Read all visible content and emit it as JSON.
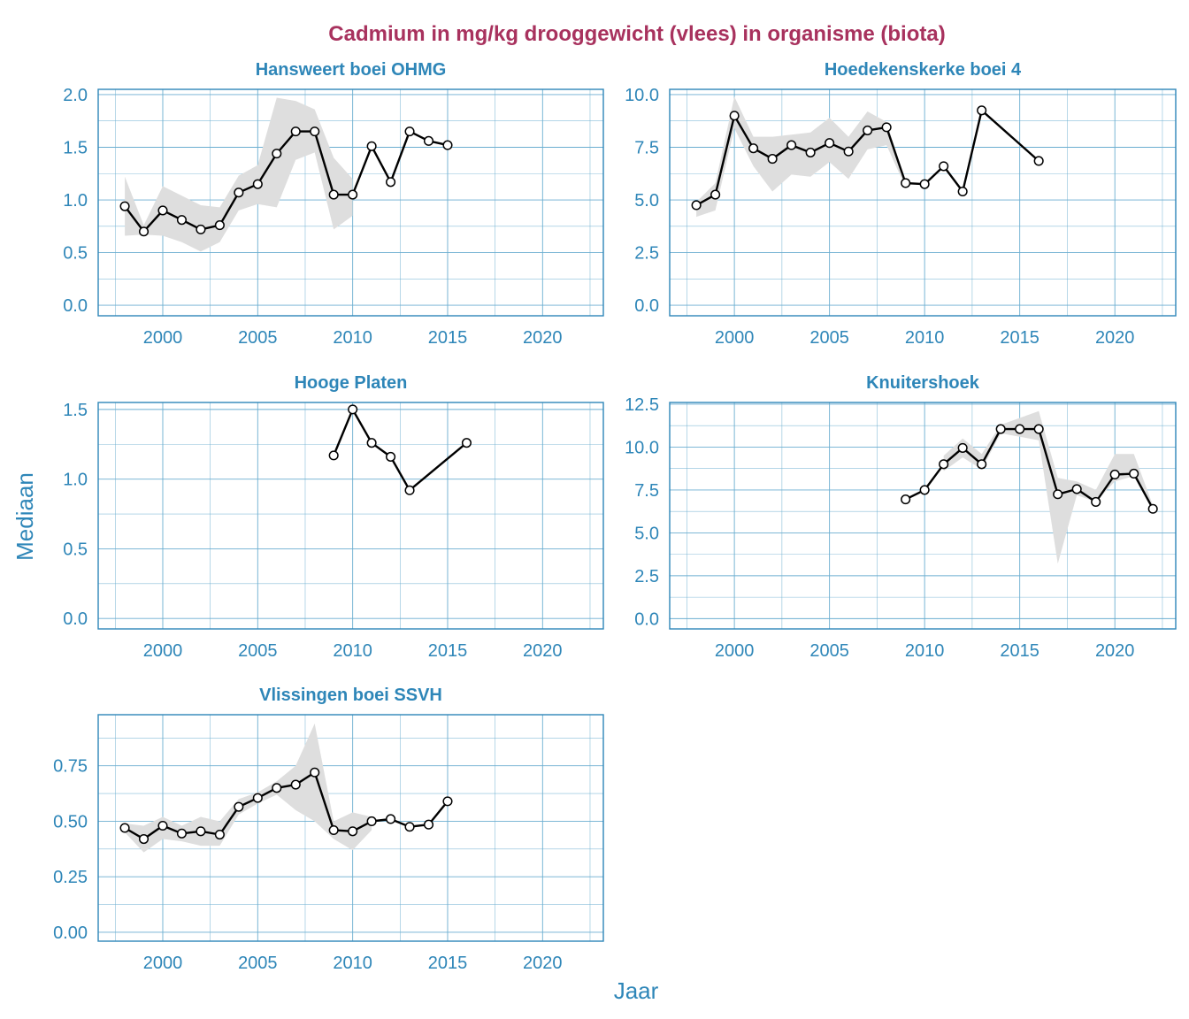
{
  "colors": {
    "title": "#A8325E",
    "axis": "#2E86B8",
    "grid": "#6BAED0",
    "ribbon": "#DEDEDE",
    "line": "#000000",
    "marker_fill": "#FFFFFF"
  },
  "chart_data": {
    "type": "line",
    "title": "Cadmium in mg/kg drooggewicht (vlees) in organisme (biota)",
    "xlabel": "Jaar",
    "ylabel": "Mediaan",
    "xlim": [
      1996.6,
      2023.2
    ],
    "x_ticks": [
      2000,
      2005,
      2010,
      2015,
      2020
    ],
    "panels": [
      {
        "title": "Hansweert boei OHMG",
        "ylim": [
          -0.1,
          2.05
        ],
        "y_ticks": [
          0.0,
          0.5,
          1.0,
          1.5,
          2.0
        ],
        "y_tick_labels": [
          "0.0",
          "0.5",
          "1.0",
          "1.5",
          "2.0"
        ],
        "x": [
          1998,
          1999,
          2000,
          2001,
          2002,
          2003,
          2004,
          2005,
          2006,
          2007,
          2008,
          2009,
          2010,
          2011,
          2012,
          2013,
          2014,
          2015
        ],
        "y": [
          0.94,
          0.7,
          0.9,
          0.81,
          0.72,
          0.76,
          1.07,
          1.15,
          1.44,
          1.65,
          1.65,
          1.05,
          1.05,
          1.51,
          1.17,
          1.65,
          1.56,
          1.52
        ],
        "ribbon_x": [
          1998,
          1999,
          2000,
          2001,
          2002,
          2003,
          2004,
          2005,
          2006,
          2007,
          2008,
          2009,
          2010
        ],
        "ribbon_low": [
          0.66,
          0.67,
          0.66,
          0.6,
          0.51,
          0.6,
          0.9,
          0.96,
          0.93,
          1.38,
          1.45,
          0.72,
          0.85
        ],
        "ribbon_high": [
          1.22,
          0.76,
          1.13,
          1.04,
          0.95,
          0.93,
          1.23,
          1.33,
          1.97,
          1.94,
          1.86,
          1.4,
          1.2
        ]
      },
      {
        "title": "Hoedekenskerke boei 4",
        "ylim": [
          -0.5,
          10.25
        ],
        "y_ticks": [
          0.0,
          2.5,
          5.0,
          7.5,
          10.0
        ],
        "y_tick_labels": [
          "0.0",
          "2.5",
          "5.0",
          "7.5",
          "10.0"
        ],
        "x": [
          1998,
          1999,
          2000,
          2001,
          2002,
          2003,
          2004,
          2005,
          2006,
          2007,
          2008,
          2009,
          2010,
          2011,
          2012,
          2013,
          2016
        ],
        "y": [
          4.75,
          5.25,
          9.0,
          7.45,
          6.95,
          7.6,
          7.25,
          7.7,
          7.3,
          8.3,
          8.45,
          5.8,
          5.75,
          6.6,
          5.4,
          9.25,
          6.85
        ],
        "ribbon_x": [
          1998,
          1999,
          2000,
          2001,
          2002,
          2003,
          2004,
          2005,
          2006,
          2007,
          2008,
          2009
        ],
        "ribbon_low": [
          4.2,
          4.5,
          8.4,
          6.6,
          5.4,
          6.2,
          6.1,
          6.8,
          6.0,
          7.4,
          7.6,
          5.6
        ],
        "ribbon_high": [
          4.9,
          5.8,
          9.9,
          8.0,
          8.0,
          8.1,
          8.2,
          8.9,
          8.0,
          9.2,
          8.7,
          5.9
        ]
      },
      {
        "title": "Hooge Platen",
        "ylim": [
          -0.075,
          1.55
        ],
        "y_ticks": [
          0.0,
          0.5,
          1.0,
          1.5
        ],
        "y_tick_labels": [
          "0.0",
          "0.5",
          "1.0",
          "1.5"
        ],
        "x": [
          2009,
          2010,
          2011,
          2012,
          2013,
          2016
        ],
        "y": [
          1.17,
          1.5,
          1.26,
          1.16,
          0.92,
          1.26
        ],
        "ribbon_x": [],
        "ribbon_low": [],
        "ribbon_high": []
      },
      {
        "title": "Knuitershoek",
        "ylim": [
          -0.6,
          12.6
        ],
        "y_ticks": [
          0.0,
          2.5,
          5.0,
          7.5,
          10.0,
          12.5
        ],
        "y_tick_labels": [
          "0.0",
          "2.5",
          "5.0",
          "7.5",
          "10.0",
          "12.5"
        ],
        "x": [
          2009,
          2010,
          2011,
          2012,
          2013,
          2014,
          2015,
          2016,
          2017,
          2018,
          2019,
          2020,
          2021,
          2022
        ],
        "y": [
          6.95,
          7.5,
          9.0,
          9.95,
          9.0,
          11.05,
          11.05,
          11.05,
          7.25,
          7.55,
          6.8,
          8.4,
          8.45,
          6.4
        ],
        "ribbon_x": [
          2011,
          2012,
          2013,
          2014,
          2015,
          2016,
          2017,
          2018,
          2019,
          2020,
          2021,
          2022
        ],
        "ribbon_low": [
          8.6,
          9.4,
          8.7,
          10.8,
          10.6,
          10.4,
          3.2,
          7.2,
          6.8,
          8.0,
          8.3,
          6.3
        ],
        "ribbon_high": [
          9.5,
          10.5,
          9.6,
          11.3,
          11.7,
          12.1,
          8.2,
          8.0,
          7.5,
          9.6,
          9.6,
          6.6
        ]
      },
      {
        "title": "Vlissingen boei SSVH",
        "ylim": [
          -0.04,
          0.98
        ],
        "y_ticks": [
          0.0,
          0.25,
          0.5,
          0.75
        ],
        "y_tick_labels": [
          "0.00",
          "0.25",
          "0.50",
          "0.75"
        ],
        "x": [
          1998,
          1999,
          2000,
          2001,
          2002,
          2003,
          2004,
          2005,
          2006,
          2007,
          2008,
          2009,
          2010,
          2011,
          2012,
          2013,
          2014,
          2015
        ],
        "y": [
          0.47,
          0.42,
          0.48,
          0.445,
          0.455,
          0.44,
          0.565,
          0.605,
          0.65,
          0.665,
          0.72,
          0.46,
          0.455,
          0.5,
          0.51,
          0.475,
          0.485,
          0.59
        ],
        "ribbon_x": [
          1998,
          1999,
          2000,
          2001,
          2002,
          2003,
          2004,
          2005,
          2006,
          2007,
          2008,
          2009,
          2010,
          2011
        ],
        "ribbon_low": [
          0.45,
          0.36,
          0.42,
          0.41,
          0.39,
          0.39,
          0.53,
          0.58,
          0.62,
          0.55,
          0.5,
          0.42,
          0.37,
          0.46
        ],
        "ribbon_high": [
          0.49,
          0.48,
          0.52,
          0.48,
          0.52,
          0.5,
          0.6,
          0.63,
          0.68,
          0.75,
          0.94,
          0.5,
          0.54,
          0.52
        ]
      }
    ]
  }
}
